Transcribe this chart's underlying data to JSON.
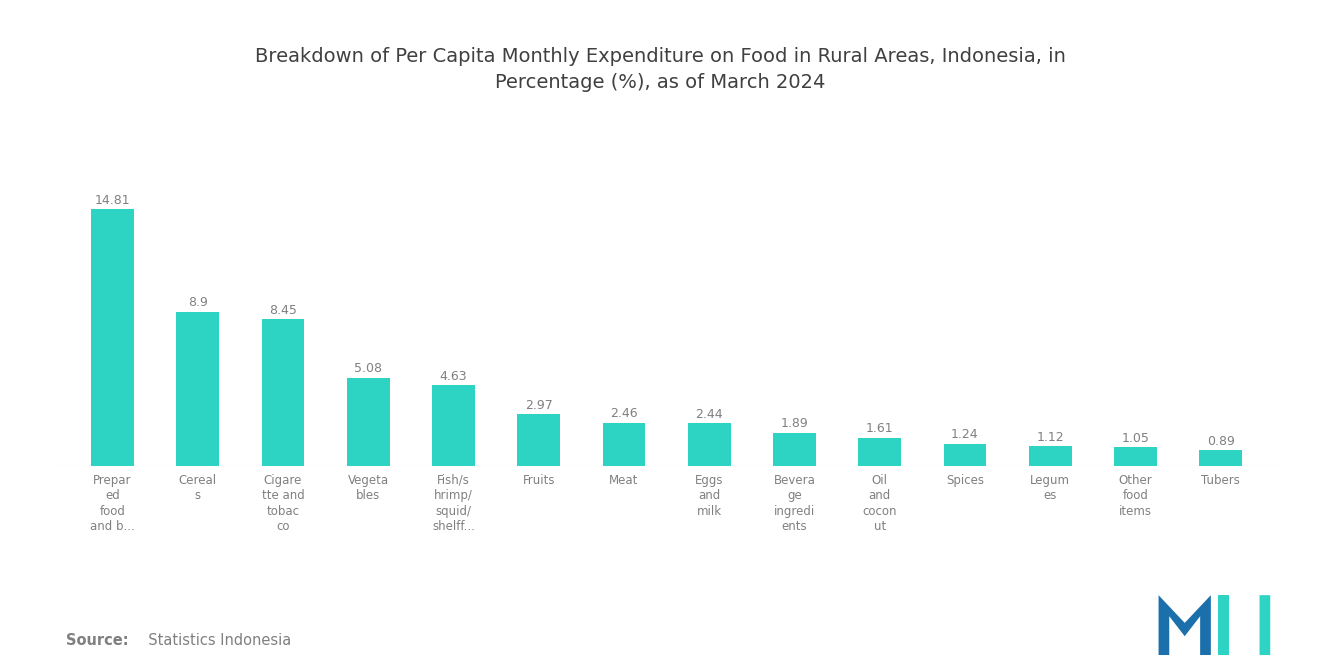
{
  "title": "Breakdown of Per Capita Monthly Expenditure on Food in Rural Areas, Indonesia, in\nPercentage (%), as of March 2024",
  "categories": [
    "Prepar\ned\nfood\nand b...",
    "Cereal\ns",
    "Cigare\ntte and\ntobac\nco",
    "Vegeta\nbles",
    "Fish/s\nhrimp/\nsquid/\nshelff...",
    "Fruits",
    "Meat",
    "Eggs\nand\nmilk",
    "Bevera\nge\ningredi\nents",
    "Oil\nand\ncocon\nut",
    "Spices",
    "Legum\nes",
    "Other\nfood\nitems",
    "Tubers"
  ],
  "values": [
    14.81,
    8.9,
    8.45,
    5.08,
    4.63,
    2.97,
    2.46,
    2.44,
    1.89,
    1.61,
    1.24,
    1.12,
    1.05,
    0.89
  ],
  "bar_color": "#2DD4C4",
  "value_labels": [
    "14.81",
    "8.9",
    "8.45",
    "5.08",
    "4.63",
    "2.97",
    "2.46",
    "2.44",
    "1.89",
    "1.61",
    "1.24",
    "1.12",
    "1.05",
    "0.89"
  ],
  "source_bold": "Source:",
  "source_rest": "  Statistics Indonesia",
  "title_fontsize": 14,
  "label_fontsize": 8.5,
  "value_fontsize": 9,
  "source_fontsize": 10.5,
  "ylim": [
    0,
    20
  ],
  "background_color": "#ffffff",
  "text_color": "#808080",
  "title_color": "#404040"
}
